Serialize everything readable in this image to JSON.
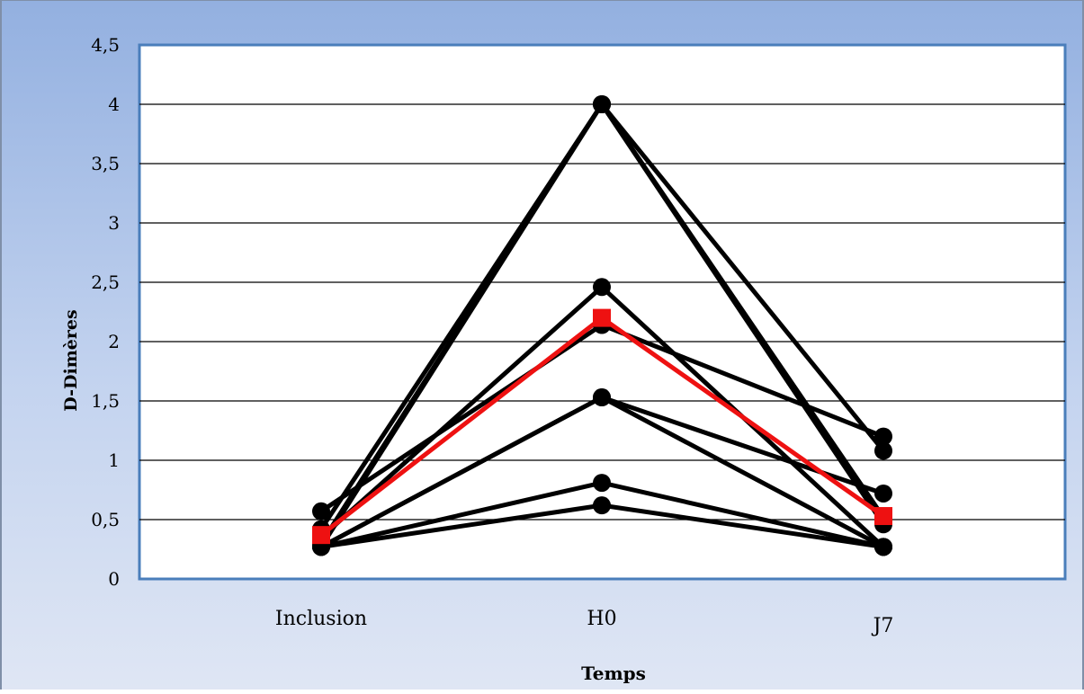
{
  "chart_data": {
    "type": "line",
    "categories": [
      "Inclusion",
      "H0",
      "J7"
    ],
    "ylim": [
      0,
      4.5
    ],
    "yticks": [
      "0",
      "0,5",
      "1",
      "1,5",
      "2",
      "2,5",
      "3",
      "3,5",
      "4",
      "4,5"
    ],
    "ytick_values": [
      0,
      0.5,
      1,
      1.5,
      2,
      2.5,
      3,
      3.5,
      4,
      4.5
    ],
    "xlabel": "Temps",
    "ylabel": "D-Dimères",
    "grid": "horizontal",
    "colors": {
      "patients": "#000000",
      "mean": "#ee1111",
      "plot_bg": "#ffffff",
      "plot_border": "#4a7ebb"
    },
    "series": [
      {
        "values": [
          0.57,
          2.14,
          1.2
        ],
        "marker": "circle"
      },
      {
        "values": [
          0.42,
          4.0,
          1.08
        ],
        "marker": "circle"
      },
      {
        "values": [
          0.27,
          4.0,
          0.52
        ],
        "marker": "circle"
      },
      {
        "values": [
          0.3,
          4.0,
          0.46
        ],
        "marker": "circle"
      },
      {
        "values": [
          0.35,
          2.46,
          0.27
        ],
        "marker": "circle"
      },
      {
        "values": [
          0.27,
          1.53,
          0.72
        ],
        "marker": "circle"
      },
      {
        "values": [
          0.27,
          1.53,
          0.27
        ],
        "marker": "circle"
      },
      {
        "values": [
          0.27,
          0.81,
          0.27
        ],
        "marker": "circle"
      },
      {
        "values": [
          0.27,
          0.62,
          0.27
        ],
        "marker": "circle"
      },
      {
        "values": [
          0.37,
          2.2,
          0.53
        ],
        "marker": "square",
        "highlight": true
      }
    ]
  }
}
